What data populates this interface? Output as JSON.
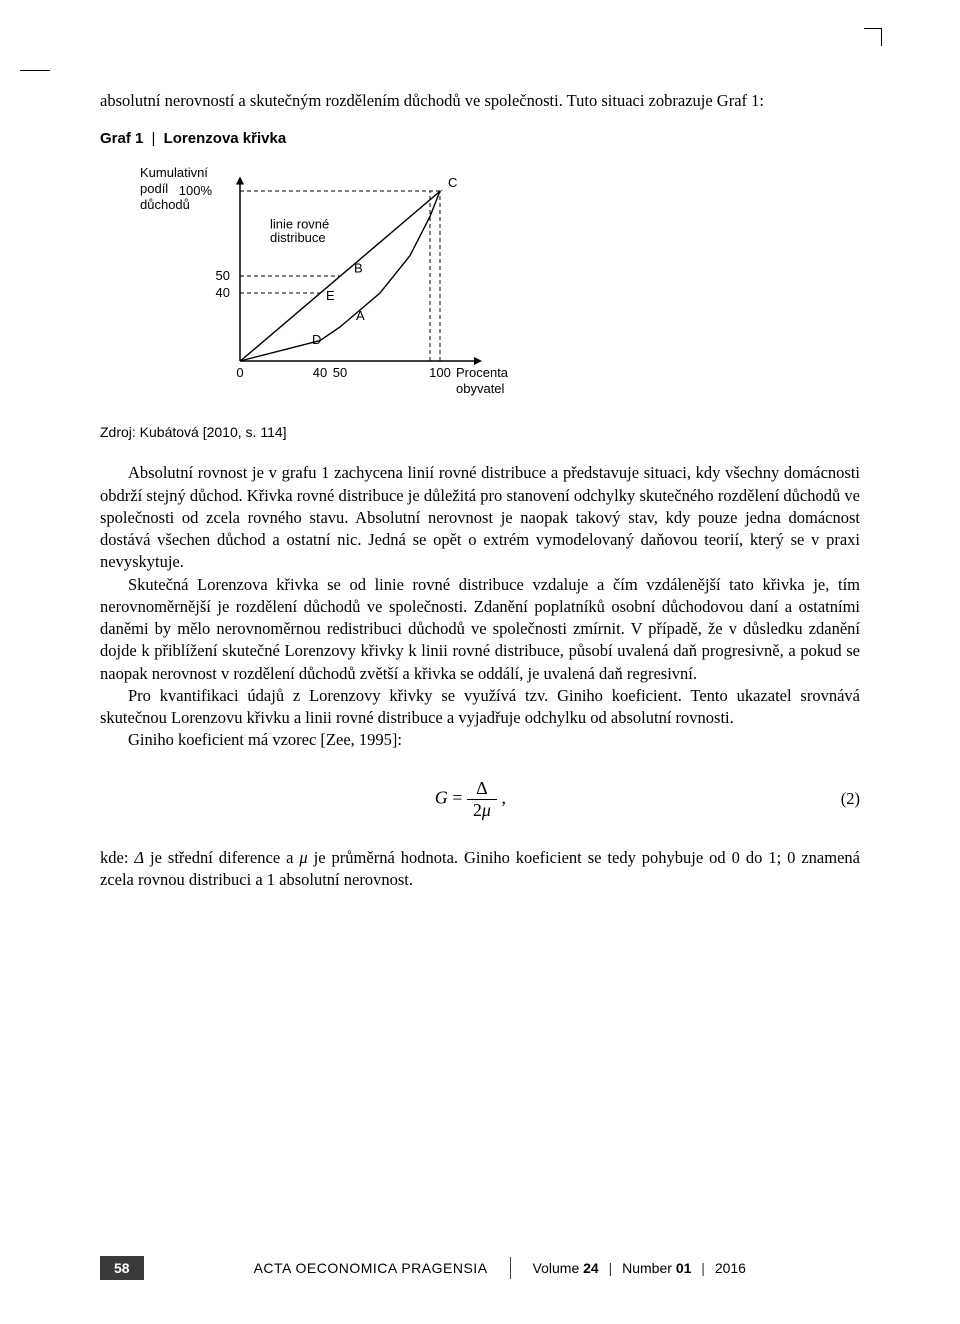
{
  "intro_text": "absolutní nerovností a skutečným rozdělením důchodů ve společnosti. Tuto situaci zobrazuje Graf 1:",
  "figure": {
    "title_prefix": "Graf 1",
    "title_label": "Lorenzova křivka",
    "y_axis_label": "Kumulativní podíl důchodů",
    "y_ticks": [
      "40",
      "50",
      "100%"
    ],
    "x_ticks": [
      "0",
      "40",
      "50",
      "100"
    ],
    "x_axis_label": "Procenta obyvatel",
    "equal_line_label": "linie rovné distribuce",
    "point_labels": {
      "A": "A",
      "B": "B",
      "C": "C",
      "D": "D",
      "E": "E"
    },
    "lorenz_curve": [
      [
        0,
        0
      ],
      [
        40,
        12
      ],
      [
        50,
        20
      ],
      [
        70,
        40
      ],
      [
        85,
        62
      ],
      [
        95,
        85
      ],
      [
        100,
        100
      ]
    ],
    "colors": {
      "axis": "#000000",
      "dash": "#000000",
      "curve": "#000000",
      "text": "#000000",
      "bg": "#ffffff"
    },
    "font_family": "Arial, Helvetica, sans-serif",
    "font_size_pt": 10
  },
  "source_text": "Zdroj: Kubátová [2010, s. 114]",
  "para1": "Absolutní rovnost je v grafu 1 zachycena linií rovné distribuce a představuje situaci, kdy všechny domácnosti obdrží stejný důchod. Křivka rovné distribuce je důležitá pro stanovení odchylky skutečného rozdělení důchodů ve společnosti od zcela rovného stavu. Absolutní nerovnost je naopak takový stav, kdy pouze jedna domácnost dostává všechen důchod a ostatní nic. Jedná se opět o extrém vymodelovaný daňovou teorií, který se v praxi nevyskytuje.",
  "para2": "Skutečná Lorenzova křivka se od linie rovné distribuce vzdaluje a čím vzdálenější tato křivka je, tím nerovnoměrnější je rozdělení důchodů ve společnosti. Zdanění poplatníků osobní důchodovou daní a ostatními daněmi by mělo nerovnoměrnou redistribuci důchodů ve společnosti zmírnit. V případě, že v důsledku zdanění dojde k přiblížení skutečné Lorenzovy křivky k linii rovné distribuce, působí uvalená daň progresivně, a pokud se naopak nerovnost v rozdělení důchodů zvětší a křivka se oddálí, je uvalená daň regresivní.",
  "para3": "Pro kvantifikaci údajů z Lorenzovy křivky se využívá tzv. Giniho koeficient. Tento ukazatel srovnává skutečnou Lorenzovu křivku a linii rovné distribuce a vyjadřuje odchylku od absolutní rovnosti.",
  "para4": "Giniho koeficient má vzorec [Zee, 1995]:",
  "formula": {
    "lhs": "G",
    "num": "Δ",
    "den": "2μ",
    "suffix": ",",
    "eq_number": "(2)"
  },
  "para5": "kde: Δ je střední diference a μ je průměrná hodnota. Giniho koeficient se tedy pohybuje od 0 do 1; 0 znamená zcela rovnou distribuci a 1 absolutní nerovnost.",
  "footer": {
    "page": "58",
    "journal": "ACTA OECONOMICA PRAGENSIA",
    "volume_label": "Volume",
    "volume": "24",
    "number_label": "Number",
    "number": "01",
    "year": "2016"
  }
}
